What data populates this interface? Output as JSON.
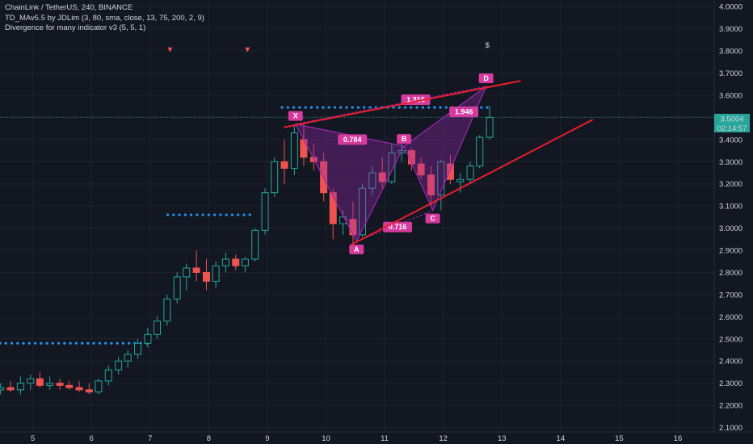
{
  "header": {
    "symbol_line": "ChainLink / TetherUS, 240, BINANCE",
    "indicator_1": "TD_MAv5.5 by JDLim (3, 80, sma, close, 13, 75, 200, 2, 9)",
    "indicator_2": "Divergence for many indicator v3 (5, 5, 1)"
  },
  "price_scale": {
    "current_price": "3.5004",
    "countdown": "02:14:57"
  },
  "colors": {
    "background": "#131722",
    "up": "#26a69a",
    "down": "#ef5350",
    "pattern_fill": "#9c27b0",
    "pattern_label": "#d53a9d",
    "trendline": "#e91e2a",
    "dots": "#2196f3",
    "price_tag": "#26a69a"
  },
  "chart_data": {
    "type": "candlestick",
    "x_ticks": [
      "5",
      "6",
      "7",
      "8",
      "9",
      "10",
      "11",
      "12",
      "13",
      "14",
      "15",
      "16"
    ],
    "y_ticks": [
      "2.1000",
      "2.2000",
      "2.3000",
      "2.4000",
      "2.5000",
      "2.6000",
      "2.7000",
      "2.8000",
      "2.9000",
      "3.0000",
      "3.1000",
      "3.2000",
      "3.3000",
      "3.4000",
      "3.5000",
      "3.6000",
      "3.7000",
      "3.8000",
      "3.9000",
      "4.0000"
    ],
    "ylim": [
      2.08,
      4.03
    ],
    "xlim": [
      4.44,
      16.62
    ],
    "candles": [
      {
        "t": 4.45,
        "o": 2.27,
        "h": 2.3,
        "l": 2.25,
        "c": 2.28
      },
      {
        "t": 4.62,
        "o": 2.28,
        "h": 2.31,
        "l": 2.26,
        "c": 2.27
      },
      {
        "t": 4.79,
        "o": 2.27,
        "h": 2.33,
        "l": 2.25,
        "c": 2.3
      },
      {
        "t": 4.96,
        "o": 2.3,
        "h": 2.34,
        "l": 2.27,
        "c": 2.32
      },
      {
        "t": 5.12,
        "o": 2.32,
        "h": 2.35,
        "l": 2.28,
        "c": 2.29
      },
      {
        "t": 5.29,
        "o": 2.29,
        "h": 2.33,
        "l": 2.27,
        "c": 2.3
      },
      {
        "t": 5.46,
        "o": 2.3,
        "h": 2.32,
        "l": 2.27,
        "c": 2.29
      },
      {
        "t": 5.62,
        "o": 2.29,
        "h": 2.31,
        "l": 2.27,
        "c": 2.28
      },
      {
        "t": 5.79,
        "o": 2.28,
        "h": 2.31,
        "l": 2.26,
        "c": 2.27
      },
      {
        "t": 5.96,
        "o": 2.27,
        "h": 2.3,
        "l": 2.25,
        "c": 2.26
      },
      {
        "t": 6.12,
        "o": 2.26,
        "h": 2.32,
        "l": 2.25,
        "c": 2.31
      },
      {
        "t": 6.29,
        "o": 2.31,
        "h": 2.38,
        "l": 2.29,
        "c": 2.36
      },
      {
        "t": 6.46,
        "o": 2.36,
        "h": 2.42,
        "l": 2.34,
        "c": 2.4
      },
      {
        "t": 6.62,
        "o": 2.4,
        "h": 2.45,
        "l": 2.37,
        "c": 2.43
      },
      {
        "t": 6.79,
        "o": 2.43,
        "h": 2.5,
        "l": 2.41,
        "c": 2.48
      },
      {
        "t": 6.96,
        "o": 2.48,
        "h": 2.55,
        "l": 2.46,
        "c": 2.52
      },
      {
        "t": 7.12,
        "o": 2.52,
        "h": 2.6,
        "l": 2.5,
        "c": 2.58
      },
      {
        "t": 7.29,
        "o": 2.58,
        "h": 2.7,
        "l": 2.56,
        "c": 2.68
      },
      {
        "t": 7.46,
        "o": 2.68,
        "h": 2.8,
        "l": 2.66,
        "c": 2.78
      },
      {
        "t": 7.62,
        "o": 2.78,
        "h": 2.84,
        "l": 2.72,
        "c": 2.82
      },
      {
        "t": 7.79,
        "o": 2.82,
        "h": 2.9,
        "l": 2.76,
        "c": 2.8
      },
      {
        "t": 7.96,
        "o": 2.8,
        "h": 2.86,
        "l": 2.72,
        "c": 2.76
      },
      {
        "t": 8.12,
        "o": 2.76,
        "h": 2.85,
        "l": 2.73,
        "c": 2.83
      },
      {
        "t": 8.29,
        "o": 2.83,
        "h": 2.89,
        "l": 2.8,
        "c": 2.86
      },
      {
        "t": 8.46,
        "o": 2.86,
        "h": 2.88,
        "l": 2.81,
        "c": 2.83
      },
      {
        "t": 8.62,
        "o": 2.83,
        "h": 2.87,
        "l": 2.8,
        "c": 2.86
      },
      {
        "t": 8.79,
        "o": 2.86,
        "h": 3.0,
        "l": 2.85,
        "c": 2.99
      },
      {
        "t": 8.96,
        "o": 2.99,
        "h": 3.18,
        "l": 2.97,
        "c": 3.16
      },
      {
        "t": 9.12,
        "o": 3.16,
        "h": 3.32,
        "l": 3.14,
        "c": 3.3
      },
      {
        "t": 9.29,
        "o": 3.3,
        "h": 3.4,
        "l": 3.2,
        "c": 3.27
      },
      {
        "t": 9.46,
        "o": 3.27,
        "h": 3.46,
        "l": 3.24,
        "c": 3.43
      },
      {
        "t": 9.62,
        "o": 3.4,
        "h": 3.48,
        "l": 3.28,
        "c": 3.32
      },
      {
        "t": 9.79,
        "o": 3.32,
        "h": 3.38,
        "l": 3.26,
        "c": 3.3
      },
      {
        "t": 9.96,
        "o": 3.3,
        "h": 3.34,
        "l": 3.12,
        "c": 3.16
      },
      {
        "t": 10.12,
        "o": 3.16,
        "h": 3.18,
        "l": 2.95,
        "c": 3.02
      },
      {
        "t": 10.29,
        "o": 3.02,
        "h": 3.08,
        "l": 2.97,
        "c": 3.05
      },
      {
        "t": 10.46,
        "o": 3.04,
        "h": 3.12,
        "l": 2.93,
        "c": 2.97
      },
      {
        "t": 10.62,
        "o": 2.97,
        "h": 3.2,
        "l": 2.96,
        "c": 3.18
      },
      {
        "t": 10.79,
        "o": 3.18,
        "h": 3.28,
        "l": 3.15,
        "c": 3.25
      },
      {
        "t": 10.96,
        "o": 3.25,
        "h": 3.32,
        "l": 3.18,
        "c": 3.21
      },
      {
        "t": 11.12,
        "o": 3.21,
        "h": 3.38,
        "l": 3.2,
        "c": 3.34
      },
      {
        "t": 11.29,
        "o": 3.34,
        "h": 3.4,
        "l": 3.3,
        "c": 3.35
      },
      {
        "t": 11.46,
        "o": 3.35,
        "h": 3.36,
        "l": 3.26,
        "c": 3.29
      },
      {
        "t": 11.62,
        "o": 3.29,
        "h": 3.32,
        "l": 3.22,
        "c": 3.24
      },
      {
        "t": 11.79,
        "o": 3.24,
        "h": 3.28,
        "l": 3.1,
        "c": 3.15
      },
      {
        "t": 11.96,
        "o": 3.15,
        "h": 3.31,
        "l": 3.08,
        "c": 3.3
      },
      {
        "t": 12.12,
        "o": 3.29,
        "h": 3.33,
        "l": 3.2,
        "c": 3.22
      },
      {
        "t": 12.29,
        "o": 3.21,
        "h": 3.25,
        "l": 3.16,
        "c": 3.22
      },
      {
        "t": 12.46,
        "o": 3.22,
        "h": 3.3,
        "l": 3.2,
        "c": 3.28
      },
      {
        "t": 12.62,
        "o": 3.28,
        "h": 3.42,
        "l": 3.27,
        "c": 3.41
      },
      {
        "t": 12.79,
        "o": 3.41,
        "h": 3.55,
        "l": 3.4,
        "c": 3.5
      }
    ],
    "dotted_levels": [
      {
        "price": 2.48,
        "from": 4.44,
        "to": 7.0
      },
      {
        "price": 3.06,
        "from": 7.3,
        "to": 8.78
      },
      {
        "price": 3.545,
        "from": 9.25,
        "to": 12.8
      }
    ],
    "current_price_level": 3.5004,
    "harmonic": {
      "points": [
        {
          "name": "X",
          "t": 9.48,
          "p": 3.47
        },
        {
          "name": "A",
          "t": 10.52,
          "p": 2.94
        },
        {
          "name": "B",
          "t": 11.33,
          "p": 3.37
        },
        {
          "name": "C",
          "t": 11.82,
          "p": 3.08
        },
        {
          "name": "D",
          "t": 12.73,
          "p": 3.64
        }
      ],
      "ratios": [
        {
          "text": "0.784",
          "t": 10.45,
          "p": 3.4
        },
        {
          "text": "0.716",
          "t": 11.22,
          "p": 3.005
        },
        {
          "text": "1.316",
          "t": 11.53,
          "p": 3.58
        },
        {
          "text": "1.946",
          "t": 12.35,
          "p": 3.525
        }
      ]
    },
    "trendlines": [
      {
        "t1": 9.28,
        "p1": 3.455,
        "t2": 13.32,
        "p2": 3.665
      },
      {
        "t1": 10.43,
        "p1": 2.925,
        "t2": 14.55,
        "p2": 3.49
      }
    ],
    "signal_markers": [
      {
        "t": 7.34,
        "p": 3.805,
        "kind": "down-triangle"
      },
      {
        "t": 8.66,
        "p": 3.805,
        "kind": "down-triangle"
      }
    ],
    "dollar_marker": {
      "text": "$",
      "t": 12.75,
      "p": 3.83
    }
  }
}
